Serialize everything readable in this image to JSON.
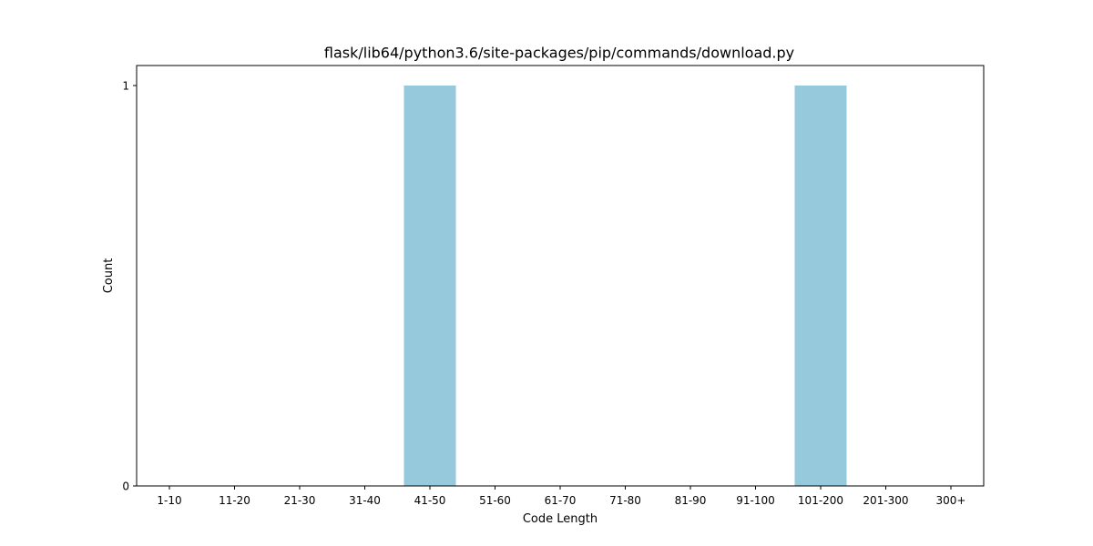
{
  "chart_data": {
    "type": "bar",
    "title": "flask/lib64/python3.6/site-packages/pip/commands/download.py",
    "xlabel": "Code Length",
    "ylabel": "Count",
    "categories": [
      "1-10",
      "11-20",
      "21-30",
      "31-40",
      "41-50",
      "51-60",
      "61-70",
      "71-80",
      "81-90",
      "91-100",
      "101-200",
      "201-300",
      "300+"
    ],
    "values": [
      0,
      0,
      0,
      0,
      1,
      0,
      0,
      0,
      0,
      0,
      1,
      0,
      0
    ],
    "ylim": [
      0,
      1
    ],
    "yticks": [
      0,
      1
    ],
    "bar_color": "#96c9dc",
    "grid": false,
    "legend": "none"
  }
}
